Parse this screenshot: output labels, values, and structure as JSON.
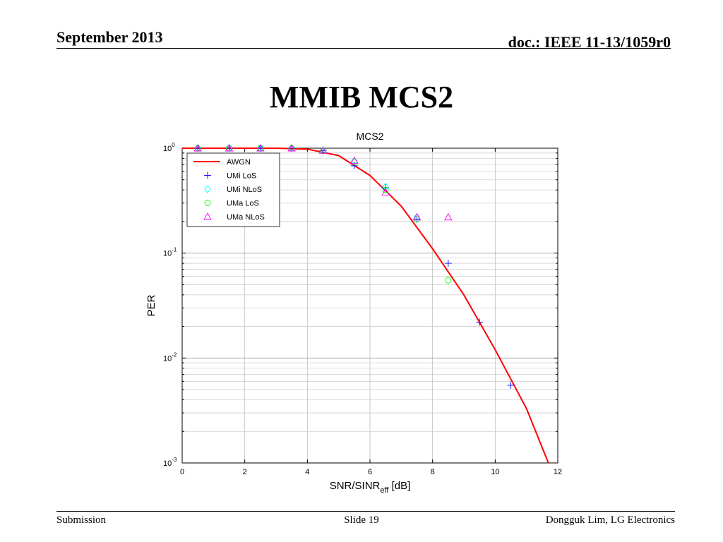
{
  "header": {
    "date": "September 2013",
    "doc": "doc.: IEEE 11-13/1059r0"
  },
  "slide_title": "MMIB MCS2",
  "footer": {
    "left": "Submission",
    "center": "Slide 19",
    "right": "Dongguk Lim, LG Electronics"
  },
  "chart_data": {
    "type": "line",
    "title": "MCS2",
    "xlabel_main": "SNR/SINR",
    "xlabel_sub": "eff",
    "xlabel_tail": " [dB]",
    "ylabel": "PER",
    "xlim": [
      0,
      12
    ],
    "ylim": [
      0.001,
      1
    ],
    "yscale": "log",
    "grid": true,
    "legend_position": "top-left",
    "x_ticks": [
      "0",
      "2",
      "4",
      "6",
      "8",
      "10",
      "12"
    ],
    "y_ticks": [
      {
        "base": "10",
        "exp": "0"
      },
      {
        "base": "10",
        "exp": "-1"
      },
      {
        "base": "10",
        "exp": "-2"
      },
      {
        "base": "10",
        "exp": "-3"
      }
    ],
    "series": [
      {
        "name": "AWGN",
        "marker": "line",
        "color": "#ff0000",
        "x": [
          0,
          1,
          2,
          3,
          4,
          5,
          6,
          7,
          8,
          9,
          10,
          11,
          11.7
        ],
        "y": [
          1,
          1,
          1,
          1,
          0.98,
          0.85,
          0.55,
          0.28,
          0.11,
          0.04,
          0.012,
          0.0033,
          0.001
        ]
      },
      {
        "name": "UMi LoS",
        "marker": "plus",
        "color": "#0000ff",
        "x": [
          0.5,
          1.5,
          2.5,
          3.5,
          4.5,
          5.5,
          6.5,
          7.5,
          8.5,
          9.5,
          10.5
        ],
        "y": [
          1,
          1,
          1,
          1,
          0.95,
          0.68,
          0.42,
          0.21,
          0.08,
          0.022,
          0.0055
        ]
      },
      {
        "name": "UMi NLoS",
        "marker": "diamond",
        "color": "#00ffff",
        "x": [
          0.5,
          1.5,
          2.5,
          3.5,
          4.5,
          5.5,
          6.5,
          7.5
        ],
        "y": [
          1,
          1,
          1,
          1,
          0.95,
          0.75,
          0.43,
          0.22
        ]
      },
      {
        "name": "UMa LoS",
        "marker": "circle",
        "color": "#00ff00",
        "x": [
          0.5,
          1.5,
          2.5,
          3.5,
          4.5,
          5.5,
          6.5,
          7.5,
          8.5
        ],
        "y": [
          1,
          1,
          1,
          1,
          0.94,
          0.74,
          0.4,
          0.21,
          0.055
        ]
      },
      {
        "name": "UMa NLoS",
        "marker": "triangle",
        "color": "#ff00ff",
        "x": [
          0.5,
          1.5,
          2.5,
          3.5,
          4.5,
          5.5,
          6.5,
          7.5,
          8.5
        ],
        "y": [
          1,
          1,
          1,
          1,
          0.95,
          0.76,
          0.38,
          0.22,
          0.22
        ]
      }
    ]
  }
}
